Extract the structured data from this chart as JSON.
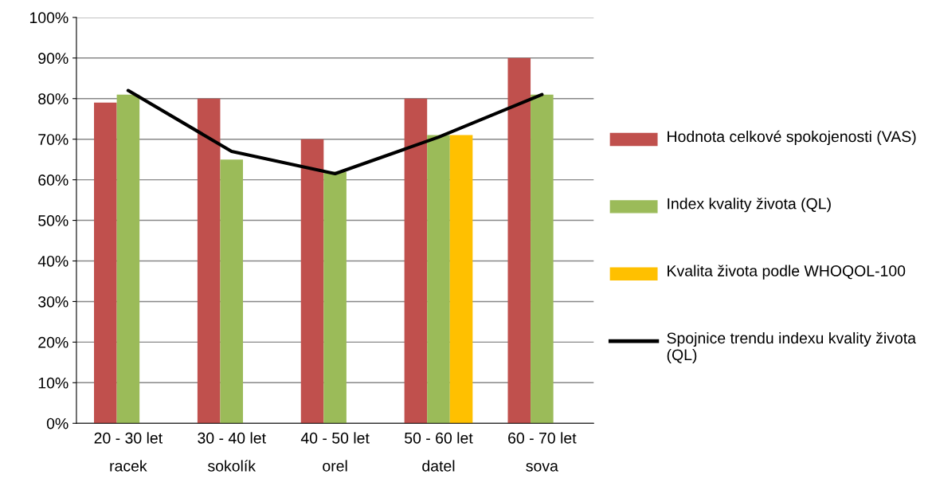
{
  "chart_data": {
    "type": "bar",
    "categories": [
      "20 - 30 let\nracek",
      "30 - 40 let\nsokolík",
      "40 - 50 let\norel",
      "50 - 60 let\ndatel",
      "60 - 70 let\nsova"
    ],
    "series": [
      {
        "name": "Hodnota celkové spokojenosti (VAS)",
        "color": "#c0504d",
        "values": [
          79,
          80,
          70,
          80,
          90
        ]
      },
      {
        "name": "Index kvality života (QL)",
        "color": "#9bbb59",
        "values": [
          81,
          65,
          62,
          71,
          81
        ]
      },
      {
        "name": "Kvalita života podle WHOQOL-100",
        "color": "#ffc000",
        "values": [
          null,
          null,
          null,
          71,
          null
        ]
      },
      {
        "name": "Spojnice trendu indexu kvality života (QL)",
        "type": "line",
        "color": "#000000",
        "values": [
          82,
          67,
          61.5,
          70.5,
          81
        ]
      }
    ],
    "ylim": [
      0,
      100
    ],
    "yticks": [
      {
        "value": 0,
        "label": "0%"
      },
      {
        "value": 10,
        "label": "10%"
      },
      {
        "value": 20,
        "label": "20%"
      },
      {
        "value": 30,
        "label": "30%"
      },
      {
        "value": 40,
        "label": "40%"
      },
      {
        "value": 50,
        "label": "50%"
      },
      {
        "value": 60,
        "label": "60%"
      },
      {
        "value": 70,
        "label": "70%"
      },
      {
        "value": 80,
        "label": "80%"
      },
      {
        "value": 90,
        "label": "90%"
      },
      {
        "value": 100,
        "label": "100%"
      }
    ],
    "grid": "y",
    "legend": "right"
  }
}
